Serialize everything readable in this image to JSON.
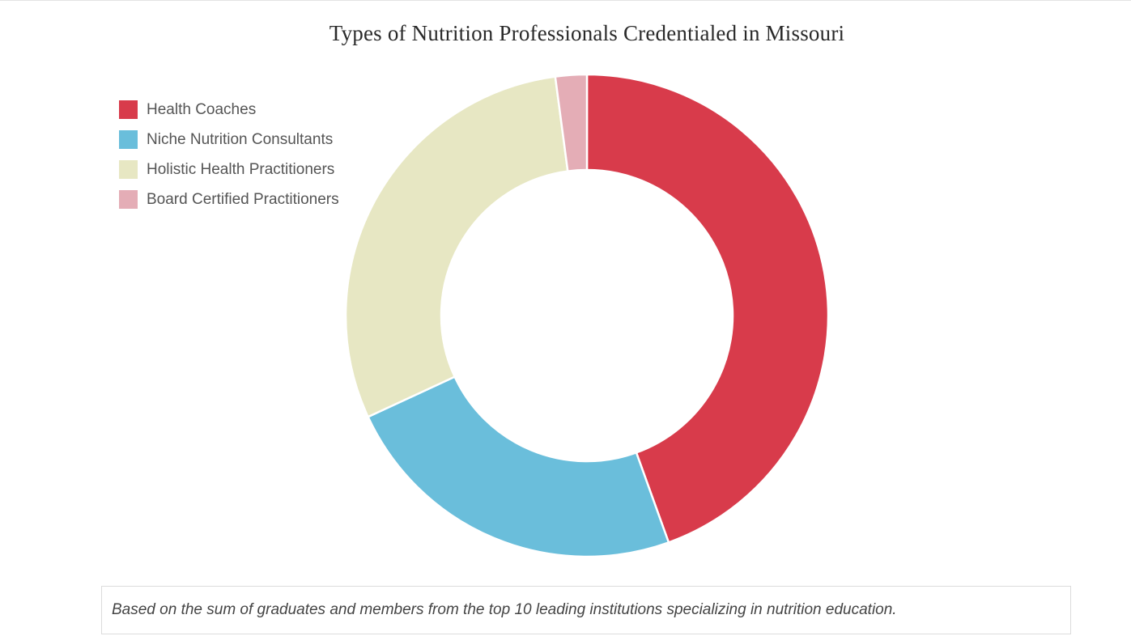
{
  "chart_data": {
    "type": "pie",
    "variant": "donut",
    "title": "Types of Nutrition Professionals Credentialed in Missouri",
    "categories": [
      "Health Coaches",
      "Niche Nutrition Consultants",
      "Holistic Health Practitioners",
      "Board Certified Practitioners"
    ],
    "values": [
      44.5,
      23.6,
      29.8,
      2.1
    ],
    "colors": [
      "#d83b4b",
      "#6abedb",
      "#e7e7c3",
      "#e4adb6"
    ],
    "legend_position": "top-left",
    "note": "Based on the sum of graduates and members from the top 10 leading institutions specializing in nutrition education."
  }
}
